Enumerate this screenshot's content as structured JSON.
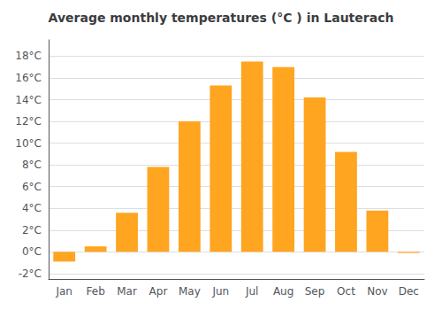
{
  "chart_data": {
    "type": "bar",
    "title": "Average monthly temperatures (°C ) in Lauterach",
    "categories": [
      "Jan",
      "Feb",
      "Mar",
      "Apr",
      "May",
      "Jun",
      "Jul",
      "Aug",
      "Sep",
      "Oct",
      "Nov",
      "Dec"
    ],
    "values": [
      -0.9,
      0.5,
      3.6,
      7.8,
      12.0,
      15.3,
      17.5,
      17.0,
      14.2,
      9.2,
      3.8,
      -0.1
    ],
    "color": "#FFA520",
    "ylim": [
      -2.5,
      19.5
    ],
    "yticks": [
      {
        "value": -2,
        "label": "-2°C"
      },
      {
        "value": 0,
        "label": "0°C"
      },
      {
        "value": 2,
        "label": "2°C"
      },
      {
        "value": 4,
        "label": "4°C"
      },
      {
        "value": 6,
        "label": "6°C"
      },
      {
        "value": 8,
        "label": "8°C"
      },
      {
        "value": 10,
        "label": "10°C"
      },
      {
        "value": 12,
        "label": "12°C"
      },
      {
        "value": 14,
        "label": "14°C"
      },
      {
        "value": 16,
        "label": "16°C"
      },
      {
        "value": 18,
        "label": "18°C"
      }
    ],
    "grid": true
  }
}
